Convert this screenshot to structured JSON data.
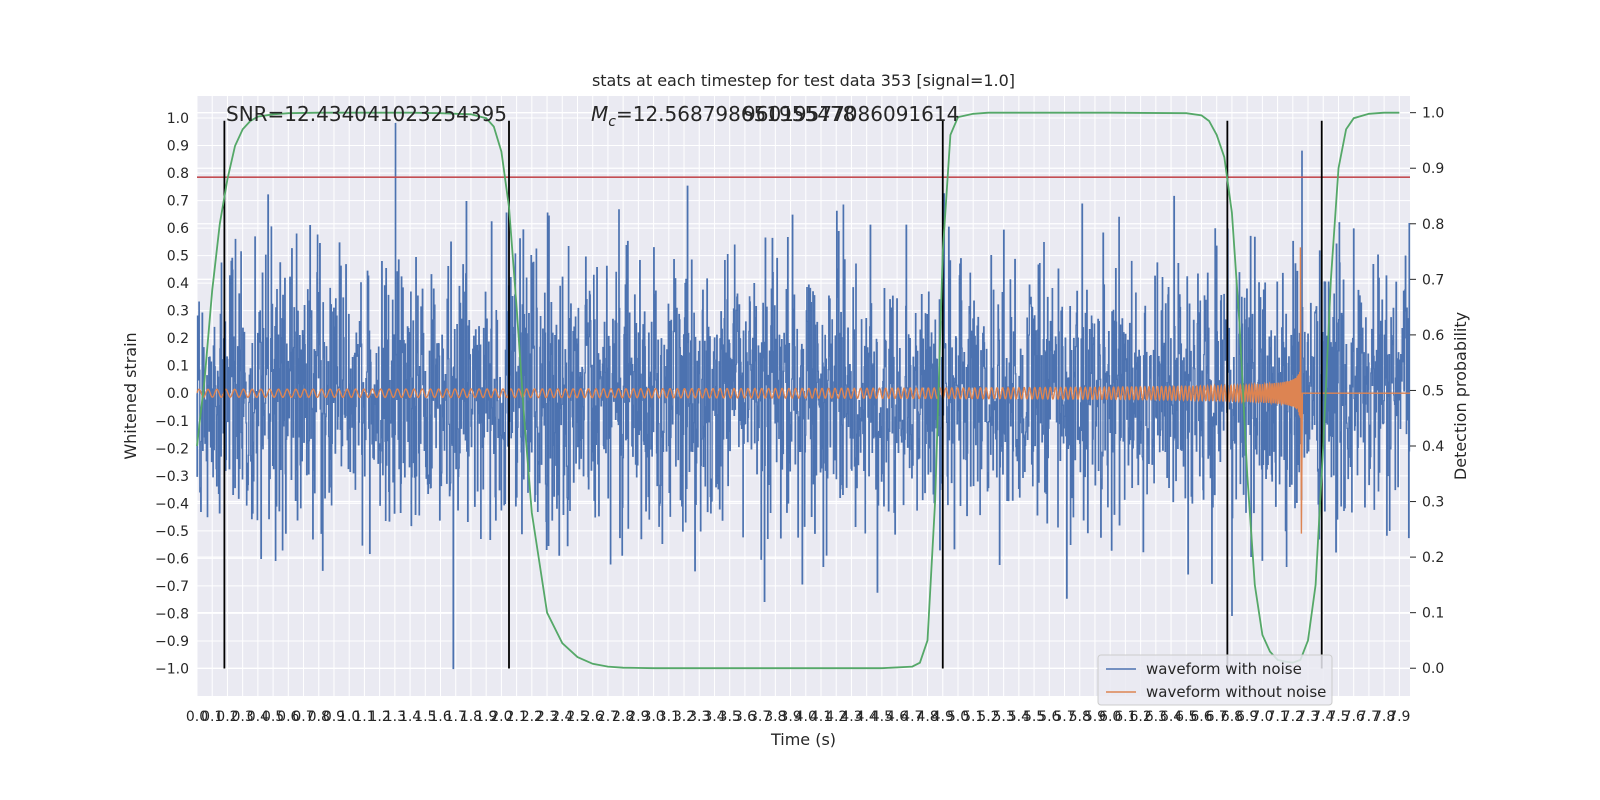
{
  "chart_data": {
    "type": "line",
    "title": "stats at each timestep for test data 353 [signal=1.0]",
    "xlabel": "Time (s)",
    "ylabel_left": "Whitened strain",
    "ylabel_right": "Detection probability",
    "xlim": [
      0.0,
      7.97
    ],
    "ylim_left": [
      -1.1,
      1.08
    ],
    "ylim_right": [
      -0.05,
      1.03
    ],
    "x_ticks": [
      "0.0",
      "0.1",
      "0.2",
      "0.3",
      "0.4",
      "0.5",
      "0.6",
      "0.7",
      "0.8",
      "0.9",
      "1.0",
      "1.1",
      "1.2",
      "1.3",
      "1.4",
      "1.5",
      "1.6",
      "1.7",
      "1.8",
      "1.9",
      "2.0",
      "2.1",
      "2.2",
      "2.3",
      "2.4",
      "2.5",
      "2.6",
      "2.7",
      "2.8",
      "2.9",
      "3.0",
      "3.1",
      "3.2",
      "3.3",
      "3.4",
      "3.5",
      "3.6",
      "3.7",
      "3.8",
      "3.9",
      "4.0",
      "4.1",
      "4.2",
      "4.3",
      "4.4",
      "4.5",
      "4.6",
      "4.7",
      "4.8",
      "4.9",
      "5.0",
      "5.1",
      "5.2",
      "5.3",
      "5.4",
      "5.5",
      "5.6",
      "5.7",
      "5.8",
      "5.9",
      "6.0",
      "6.1",
      "6.2",
      "6.3",
      "6.4",
      "6.5",
      "6.6",
      "6.7",
      "6.8",
      "6.9",
      "7.0",
      "7.1",
      "7.2",
      "7.3",
      "7.4",
      "7.5",
      "7.6",
      "7.7",
      "7.8",
      "7.9"
    ],
    "y_ticks_left": [
      "−1.0",
      "−0.9",
      "−0.8",
      "−0.7",
      "−0.6",
      "−0.5",
      "−0.4",
      "−0.3",
      "−0.2",
      "−0.1",
      "0.0",
      "0.1",
      "0.2",
      "0.3",
      "0.4",
      "0.5",
      "0.6",
      "0.7",
      "0.8",
      "0.9",
      "1.0"
    ],
    "y_ticks_right": [
      "0.0",
      "0.1",
      "0.2",
      "0.3",
      "0.4",
      "0.5",
      "0.6",
      "0.7",
      "0.8",
      "0.9",
      "1.0"
    ],
    "annotations": {
      "snr": "SNR=12.434041023254395",
      "mc_prefix": "M",
      "mc_subscript": "c",
      "mc_value": "=12.568798651955478",
      "overlap": "96019577086091614"
    },
    "threshold_y_left": 0.785,
    "vertical_lines_x": [
      0.18,
      2.05,
      4.9,
      6.77,
      7.39
    ],
    "series": [
      {
        "name": "waveform with noise",
        "color": "#4c72b0",
        "description_amplitude_envelope": [
          [
            0.0,
            0.6
          ],
          [
            8.0,
            0.6
          ]
        ]
      },
      {
        "name": "waveform without noise",
        "color": "#dd8452",
        "chirp": {
          "t_merger": 7.25,
          "base_amplitude": 0.012,
          "peak_positive": 0.53,
          "peak_negative": -0.51,
          "start_frequency": 17
        }
      },
      {
        "name": "detection probability",
        "color": "#55a868",
        "axis": "right",
        "x": [
          0.0,
          0.05,
          0.1,
          0.15,
          0.2,
          0.25,
          0.3,
          0.35,
          0.4,
          0.5,
          0.6,
          0.8,
          1.0,
          1.2,
          1.4,
          1.6,
          1.8,
          1.9,
          1.95,
          2.0,
          2.05,
          2.1,
          2.15,
          2.2,
          2.3,
          2.4,
          2.5,
          2.6,
          2.7,
          2.8,
          3.0,
          3.5,
          4.0,
          4.5,
          4.7,
          4.75,
          4.8,
          4.85,
          4.9,
          4.95,
          5.0,
          5.1,
          5.2,
          5.5,
          6.0,
          6.5,
          6.6,
          6.65,
          6.7,
          6.75,
          6.8,
          6.85,
          6.9,
          6.95,
          7.0,
          7.05,
          7.1,
          7.15,
          7.2,
          7.25,
          7.3,
          7.35,
          7.4,
          7.45,
          7.5,
          7.55,
          7.6,
          7.7,
          7.8,
          7.9
        ],
        "y": [
          0.4,
          0.52,
          0.68,
          0.8,
          0.88,
          0.94,
          0.97,
          0.985,
          0.993,
          0.997,
          0.999,
          1.0,
          1.0,
          1.0,
          1.0,
          0.999,
          0.997,
          0.99,
          0.975,
          0.93,
          0.83,
          0.65,
          0.45,
          0.28,
          0.1,
          0.045,
          0.02,
          0.008,
          0.003,
          0.001,
          0.0,
          0.0,
          0.0,
          0.0,
          0.003,
          0.01,
          0.05,
          0.3,
          0.75,
          0.96,
          0.992,
          0.998,
          1.0,
          1.0,
          1.0,
          0.999,
          0.995,
          0.985,
          0.96,
          0.92,
          0.82,
          0.62,
          0.35,
          0.15,
          0.06,
          0.03,
          0.015,
          0.012,
          0.01,
          0.015,
          0.05,
          0.15,
          0.4,
          0.7,
          0.9,
          0.97,
          0.99,
          0.998,
          1.0,
          1.0
        ]
      }
    ],
    "legend": {
      "placement": "lower-right",
      "entries": [
        "waveform with noise",
        "waveform without noise"
      ]
    }
  },
  "colors": {
    "background": "#eaeaf2",
    "grid": "#ffffff",
    "threshold": "#c44e52",
    "vlines": "#000000",
    "noise": "#4c72b0",
    "clean": "#dd8452",
    "prob": "#55a868"
  }
}
